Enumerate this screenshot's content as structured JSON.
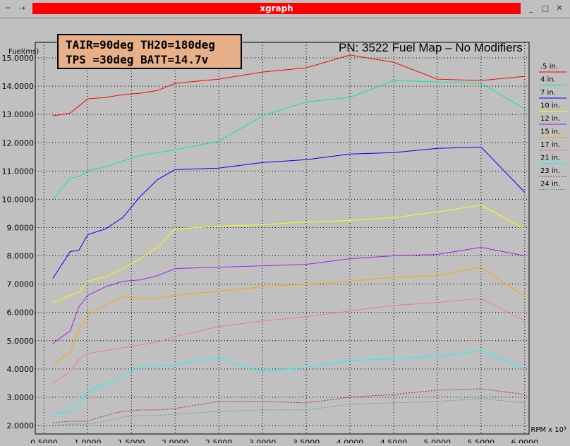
{
  "window": {
    "title": "xgraph"
  },
  "info_lines": [
    "TAIR=90deg TH20=180deg",
    "TPS =30deg BATT=14.7v"
  ],
  "headline": "PN: 3522 Fuel Map – No Modifiers",
  "icons": {
    "menu": "window-menu-icon",
    "minimize": "minimize-icon",
    "maximize": "maximize-icon",
    "close": "close-icon"
  },
  "chart_data": {
    "type": "line",
    "ylabel": "Fuel(ms)",
    "xlabel": "RPM x 10³",
    "xlim": [
      0.4,
      6.05
    ],
    "ylim": [
      1.7,
      15.55
    ],
    "grid": true,
    "legend_position": "right",
    "x_ticks": [
      "0.5000",
      "1.0000",
      "1.5000",
      "2.0000",
      "2.5000",
      "3.0000",
      "3.5000",
      "4.0000",
      "4.5000",
      "5.0000",
      "5.5000",
      "6.0000"
    ],
    "y_ticks": [
      "2.0000",
      "3.0000",
      "4.0000",
      "5.0000",
      "6.0000",
      "7.0000",
      "8.0000",
      "9.0000",
      "10.0000",
      "11.0000",
      "12.0000",
      "13.0000",
      "14.0000",
      "15.0000"
    ],
    "x": [
      0.6,
      0.8,
      0.9,
      1.0,
      1.2,
      1.4,
      1.6,
      1.8,
      2.0,
      2.5,
      3.0,
      3.5,
      4.0,
      4.5,
      5.0,
      5.5,
      6.0
    ],
    "series": [
      {
        "name": ".5 in.",
        "color": "#ff0000",
        "dash": "",
        "values": [
          12.95,
          13.05,
          13.3,
          13.55,
          13.6,
          13.7,
          13.75,
          13.85,
          14.1,
          14.25,
          14.5,
          14.65,
          15.1,
          14.85,
          14.25,
          14.2,
          14.35
        ]
      },
      {
        "name": "4 in.",
        "color": "#00ee90",
        "dash": "",
        "values": [
          10.0,
          10.75,
          10.8,
          11.0,
          11.15,
          11.35,
          11.55,
          11.65,
          11.75,
          12.05,
          12.95,
          13.45,
          13.6,
          14.2,
          14.15,
          14.1,
          13.2
        ]
      },
      {
        "name": "7 in.",
        "color": "#0000ff",
        "dash": "",
        "values": [
          7.2,
          8.15,
          8.2,
          8.75,
          8.95,
          9.35,
          10.1,
          10.7,
          11.05,
          11.1,
          11.3,
          11.4,
          11.6,
          11.65,
          11.8,
          11.85,
          10.25
        ]
      },
      {
        "name": "10 in.",
        "color": "#ffff00",
        "dash": "",
        "values": [
          6.35,
          6.6,
          6.7,
          7.1,
          7.25,
          7.55,
          7.9,
          8.3,
          8.95,
          9.05,
          9.1,
          9.2,
          9.25,
          9.35,
          9.55,
          9.8,
          8.95
        ]
      },
      {
        "name": "12 in.",
        "color": "#a020f0",
        "dash": "",
        "values": [
          4.9,
          5.35,
          6.2,
          6.6,
          6.9,
          7.1,
          7.15,
          7.3,
          7.55,
          7.6,
          7.65,
          7.7,
          7.9,
          8.0,
          8.05,
          8.3,
          8.0
        ]
      },
      {
        "name": "15 in.",
        "color": "#ffa500",
        "dash": "",
        "values": [
          4.15,
          4.6,
          5.4,
          5.9,
          6.25,
          6.55,
          6.5,
          6.5,
          6.6,
          6.75,
          6.9,
          7.0,
          7.1,
          7.25,
          7.3,
          7.6,
          6.55
        ]
      },
      {
        "name": "17 in.",
        "color": "#ff69b4",
        "dash": "",
        "values": [
          3.5,
          3.9,
          4.35,
          4.55,
          4.65,
          4.75,
          4.85,
          4.95,
          5.15,
          5.5,
          5.7,
          5.85,
          6.05,
          6.25,
          6.35,
          6.5,
          5.7
        ]
      },
      {
        "name": "21 in.",
        "color": "#00ffff",
        "dash": "",
        "values": [
          2.4,
          2.5,
          2.75,
          3.2,
          3.45,
          3.75,
          4.1,
          4.1,
          4.15,
          4.4,
          3.9,
          4.05,
          4.3,
          4.35,
          4.45,
          4.65,
          4.0
        ]
      },
      {
        "name": "23 in.",
        "color": "#b22222",
        "dash": "2,2",
        "values": [
          2.1,
          2.15,
          2.15,
          2.15,
          2.35,
          2.5,
          2.55,
          2.55,
          2.6,
          2.85,
          2.85,
          2.8,
          3.0,
          3.1,
          3.25,
          3.3,
          3.1
        ]
      },
      {
        "name": "24 in.",
        "color": "#2e8b57",
        "dash": "1,2",
        "values": [
          2.0,
          2.05,
          2.05,
          2.05,
          2.15,
          2.3,
          2.35,
          2.35,
          2.4,
          2.5,
          2.55,
          2.55,
          2.75,
          2.8,
          2.85,
          2.95,
          2.8
        ]
      }
    ]
  }
}
